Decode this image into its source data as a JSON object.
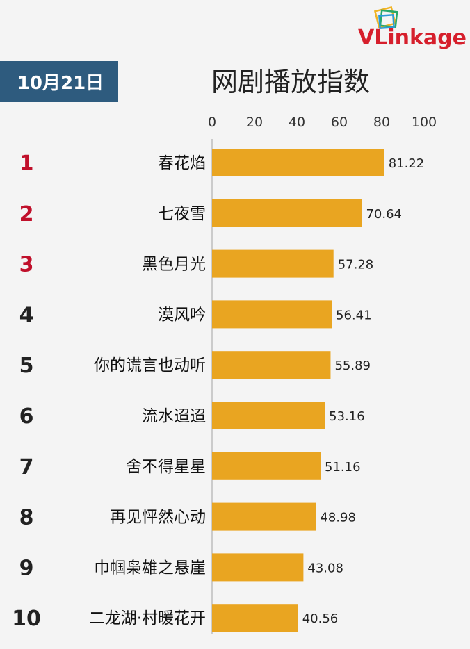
{
  "header": {
    "date": "10月21日",
    "logo_text": "VLinkage"
  },
  "chart_data": {
    "type": "bar",
    "orientation": "horizontal",
    "title": "网剧播放指数",
    "xlim": [
      0,
      100
    ],
    "x_ticks": [
      0,
      20,
      40,
      60,
      80,
      100
    ],
    "grid": false,
    "ranks": [
      "1",
      "2",
      "3",
      "4",
      "5",
      "6",
      "7",
      "8",
      "9",
      "10"
    ],
    "categories": [
      "春花焰",
      "七夜雪",
      "黑色月光",
      "漠风吟",
      "你的谎言也动听",
      "流水迢迢",
      "舍不得星星",
      "再见怦然心动",
      "巾帼枭雄之悬崖",
      "二龙湖·村暖花开"
    ],
    "values": [
      81.22,
      70.64,
      57.28,
      56.41,
      55.89,
      53.16,
      51.16,
      48.98,
      43.08,
      40.56
    ],
    "value_labels": [
      "81.22",
      "70.64",
      "57.28",
      "56.41",
      "55.89",
      "53.16",
      "51.16",
      "48.98",
      "43.08",
      "40.56"
    ]
  },
  "colors": {
    "bar": "#e9a521",
    "top_rank": "#c0102b",
    "rank": "#222222",
    "date_badge": "#2e5b7e",
    "brand": "#d61f2c",
    "logo_green": "#26a86b",
    "logo_yellow": "#f0b323",
    "logo_blue": "#2a9ad6"
  }
}
